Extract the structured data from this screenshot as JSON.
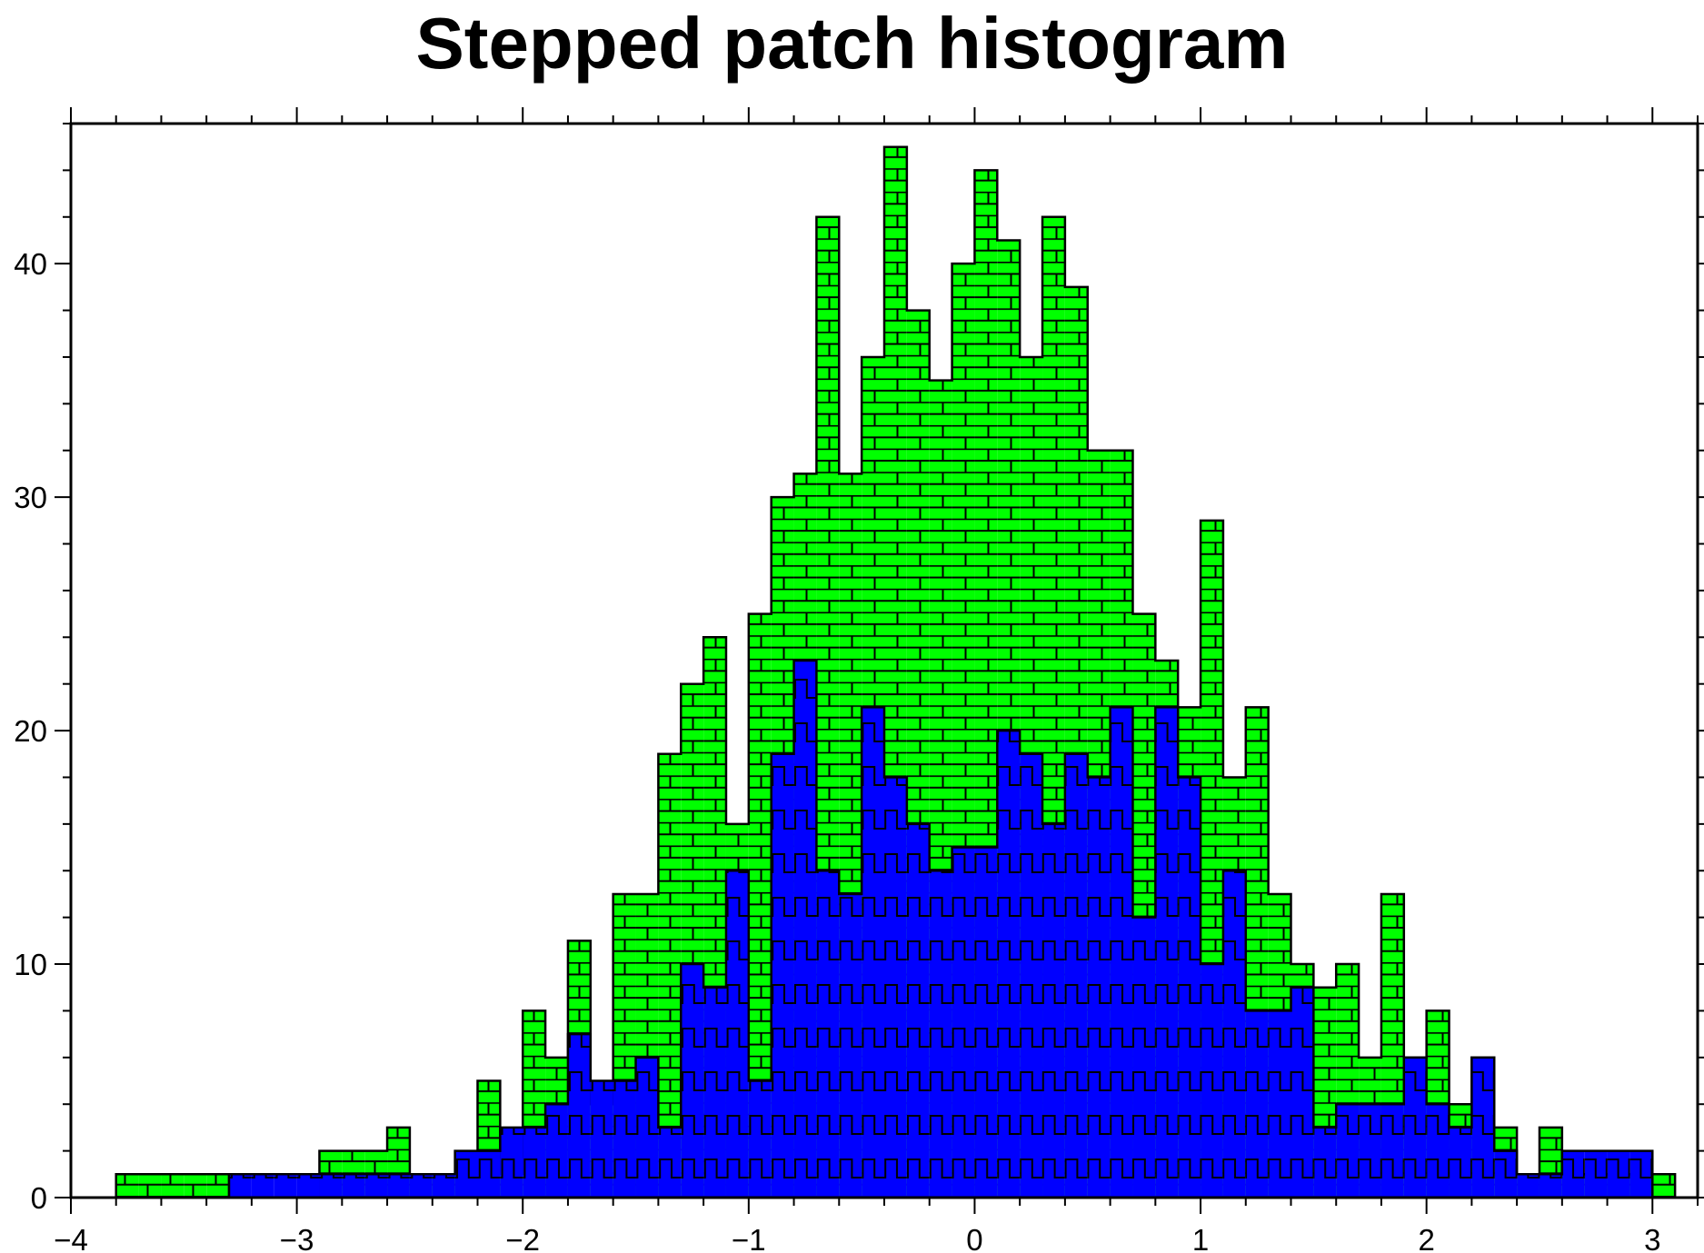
{
  "chart_data": {
    "type": "bar",
    "title": "Stepped patch histogram",
    "xlabel": "",
    "ylabel": "",
    "xlim": [
      -4,
      3.2
    ],
    "ylim": [
      0,
      46
    ],
    "bin_width": 0.1,
    "x_ticks": [
      -4,
      -3,
      -2,
      -1,
      0,
      1,
      2,
      3
    ],
    "x_tick_labels": [
      "−4",
      "−3",
      "−2",
      "−1",
      "0",
      "1",
      "2",
      "3"
    ],
    "y_ticks": [
      0,
      10,
      20,
      30,
      40
    ],
    "y_tick_labels": [
      "0",
      "10",
      "20",
      "30",
      "40"
    ],
    "grid": false,
    "legend": "none",
    "series": [
      {
        "pattern": "brick",
        "color": "#00ff00",
        "x": [
          -3.8,
          -3.7,
          -3.6,
          -3.5,
          -3.4,
          -3.3,
          -3.2,
          -3.1,
          -3.0,
          -2.9,
          -2.8,
          -2.7,
          -2.6,
          -2.5,
          -2.4,
          -2.3,
          -2.2,
          -2.1,
          -2.0,
          -1.9,
          -1.8,
          -1.7,
          -1.6,
          -1.5,
          -1.4,
          -1.3,
          -1.2,
          -1.1,
          -1.0,
          -0.9,
          -0.8,
          -0.7,
          -0.6,
          -0.5,
          -0.4,
          -0.3,
          -0.2,
          -0.1,
          0.0,
          0.1,
          0.2,
          0.3,
          0.4,
          0.5,
          0.6,
          0.7,
          0.8,
          0.9,
          1.0,
          1.1,
          1.2,
          1.3,
          1.4,
          1.5,
          1.6,
          1.7,
          1.8,
          1.9,
          2.0,
          2.1,
          2.2,
          2.3,
          2.4,
          2.5,
          2.6,
          2.7,
          2.8,
          2.9,
          3.0
        ],
        "values": [
          1,
          1,
          1,
          1,
          1,
          0,
          0,
          0,
          0,
          2,
          2,
          2,
          3,
          1,
          1,
          1,
          5,
          1,
          8,
          6,
          11,
          4,
          13,
          13,
          19,
          22,
          24,
          16,
          25,
          30,
          31,
          42,
          31,
          36,
          45,
          38,
          35,
          40,
          44,
          41,
          36,
          42,
          39,
          32,
          32,
          25,
          23,
          21,
          29,
          18,
          21,
          13,
          10,
          9,
          10,
          6,
          13,
          6,
          8,
          4,
          6,
          3,
          1,
          3,
          1,
          1,
          1,
          1,
          1
        ]
      },
      {
        "pattern": "step",
        "color": "#0000ff",
        "x": [
          -3.8,
          -3.7,
          -3.6,
          -3.5,
          -3.4,
          -3.3,
          -3.2,
          -3.1,
          -3.0,
          -2.9,
          -2.8,
          -2.7,
          -2.6,
          -2.5,
          -2.4,
          -2.3,
          -2.2,
          -2.1,
          -2.0,
          -1.9,
          -1.8,
          -1.7,
          -1.6,
          -1.5,
          -1.4,
          -1.3,
          -1.2,
          -1.1,
          -1.0,
          -0.9,
          -0.8,
          -0.7,
          -0.6,
          -0.5,
          -0.4,
          -0.3,
          -0.2,
          -0.1,
          0.0,
          0.1,
          0.2,
          0.3,
          0.4,
          0.5,
          0.6,
          0.7,
          0.8,
          0.9,
          1.0,
          1.1,
          1.2,
          1.3,
          1.4,
          1.5,
          1.6,
          1.7,
          1.8,
          1.9,
          2.0,
          2.1,
          2.2,
          2.3,
          2.4,
          2.5,
          2.6,
          2.7,
          2.8,
          2.9,
          3.0
        ],
        "values": [
          0,
          0,
          0,
          0,
          0,
          1,
          1,
          1,
          1,
          1,
          1,
          1,
          1,
          1,
          1,
          2,
          2,
          3,
          3,
          4,
          7,
          5,
          5,
          6,
          3,
          10,
          9,
          14,
          5,
          19,
          23,
          14,
          13,
          21,
          18,
          16,
          14,
          15,
          15,
          20,
          19,
          16,
          19,
          18,
          21,
          12,
          21,
          18,
          10,
          14,
          8,
          8,
          9,
          3,
          4,
          4,
          4,
          6,
          4,
          3,
          6,
          2,
          1,
          1,
          2,
          2,
          2,
          2,
          0
        ]
      }
    ]
  }
}
